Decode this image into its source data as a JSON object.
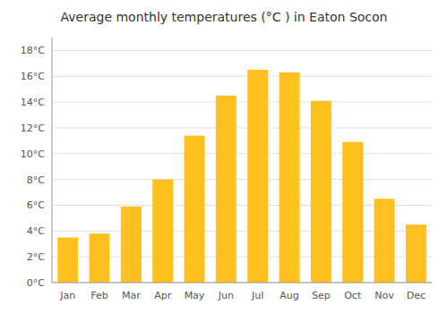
{
  "chart_data": {
    "type": "bar",
    "title": "Average monthly temperatures (°C ) in Eaton Socon",
    "categories": [
      "Jan",
      "Feb",
      "Mar",
      "Apr",
      "May",
      "Jun",
      "Jul",
      "Aug",
      "Sep",
      "Oct",
      "Nov",
      "Dec"
    ],
    "values": [
      3.5,
      3.8,
      5.9,
      8.0,
      11.4,
      14.5,
      16.5,
      16.3,
      14.1,
      10.9,
      6.5,
      4.5
    ],
    "color": "#FFC020",
    "ylim": [
      0,
      19
    ],
    "yticks": [
      {
        "value": 0,
        "label": "0°C"
      },
      {
        "value": 2,
        "label": "2°C"
      },
      {
        "value": 4,
        "label": "4°C"
      },
      {
        "value": 6,
        "label": "6°C"
      },
      {
        "value": 8,
        "label": "8°C"
      },
      {
        "value": 10,
        "label": "10°C"
      },
      {
        "value": 12,
        "label": "12°C"
      },
      {
        "value": 14,
        "label": "14°C"
      },
      {
        "value": 16,
        "label": "16°C"
      },
      {
        "value": 18,
        "label": "18°C"
      }
    ],
    "grid": true
  }
}
